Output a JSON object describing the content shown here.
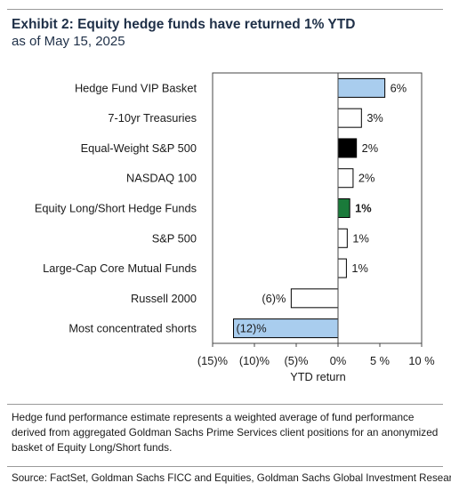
{
  "header": {
    "title": "Exhibit 2: Equity hedge funds have returned 1% YTD",
    "subtitle": "as of May 15, 2025"
  },
  "chart_data": {
    "type": "bar",
    "orientation": "horizontal",
    "xlabel": "YTD return",
    "xlim": [
      -15,
      10
    ],
    "xticks": [
      -15,
      -10,
      -5,
      0,
      5,
      10
    ],
    "xtick_labels": [
      "(15)%",
      "(10)%",
      "(5)%",
      "0%",
      "5 %",
      "10 %"
    ],
    "grid": false,
    "bars": [
      {
        "label": "Hedge Fund VIP Basket",
        "value": 5.6,
        "value_label": "6%",
        "color": "#a9cdee"
      },
      {
        "label": "7-10yr Treasuries",
        "value": 2.8,
        "value_label": "3%",
        "color": "#ffffff"
      },
      {
        "label": "Equal-Weight S&P 500",
        "value": 2.2,
        "value_label": "2%",
        "color": "#000000"
      },
      {
        "label": "NASDAQ 100",
        "value": 1.8,
        "value_label": "2%",
        "color": "#ffffff"
      },
      {
        "label": "Equity Long/Short Hedge Funds",
        "value": 1.4,
        "value_label": "1%",
        "color": "#1a7a3a",
        "bold_value": true
      },
      {
        "label": "S&P 500",
        "value": 1.1,
        "value_label": "1%",
        "color": "#ffffff"
      },
      {
        "label": "Large-Cap Core Mutual Funds",
        "value": 1.0,
        "value_label": "1%",
        "color": "#ffffff"
      },
      {
        "label": "Russell 2000",
        "value": -5.6,
        "value_label": "(6)%",
        "color": "#ffffff"
      },
      {
        "label": "Most concentrated shorts",
        "value": -12.5,
        "value_label": "(12)%",
        "color": "#a9cdee"
      }
    ]
  },
  "footer": {
    "note": "Hedge fund performance estimate represents a weighted average of fund performance derived from aggregated Goldman Sachs Prime Services client positions for an anonymized basket of Equity Long/Short funds.",
    "source": "Source: FactSet, Goldman Sachs FICC and Equities, Goldman Sachs Global Investment Research"
  }
}
